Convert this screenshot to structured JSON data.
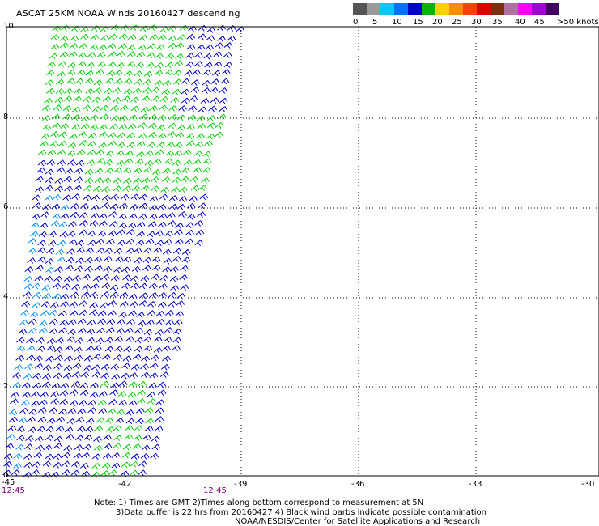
{
  "title": "ASCAT 25KM NOAA Winds 20160427 descending",
  "color_scale": {
    "labels": [
      "0",
      "5",
      "10",
      "15",
      "20",
      "25",
      "30",
      "35",
      "40",
      "45",
      ">50 knots"
    ],
    "colors": [
      "#555555",
      "#9a9a9a",
      "#00c8ff",
      "#0070ff",
      "#0000d0",
      "#00b400",
      "#ffd000",
      "#ff8c00",
      "#ff4000",
      "#e00000",
      "#7a3010",
      "#b070a0",
      "#ff00ff",
      "#a000d0",
      "#400060"
    ]
  },
  "map": {
    "y_ticks": [
      "10",
      "8",
      "6",
      "4",
      "2",
      "0"
    ],
    "x_ticks": [
      "-45",
      "-42",
      "-39",
      "-36",
      "-33",
      "-30"
    ],
    "times": [
      "12:45",
      "12:45"
    ],
    "swath_colors": {
      "green": "#00d000",
      "blue": "#0000cc",
      "light_blue": "#0090ff"
    }
  },
  "notes": {
    "line1": "Note: 1) Times are GMT 2)Times along bottom correspond to measurement at 5N",
    "line2": "3)Data buffer is 22 hrs from 20160427 4) Black wind barbs indicate possible contamination",
    "line3": "NOAA/NESDIS/Center for Satellite Applications and Research"
  }
}
